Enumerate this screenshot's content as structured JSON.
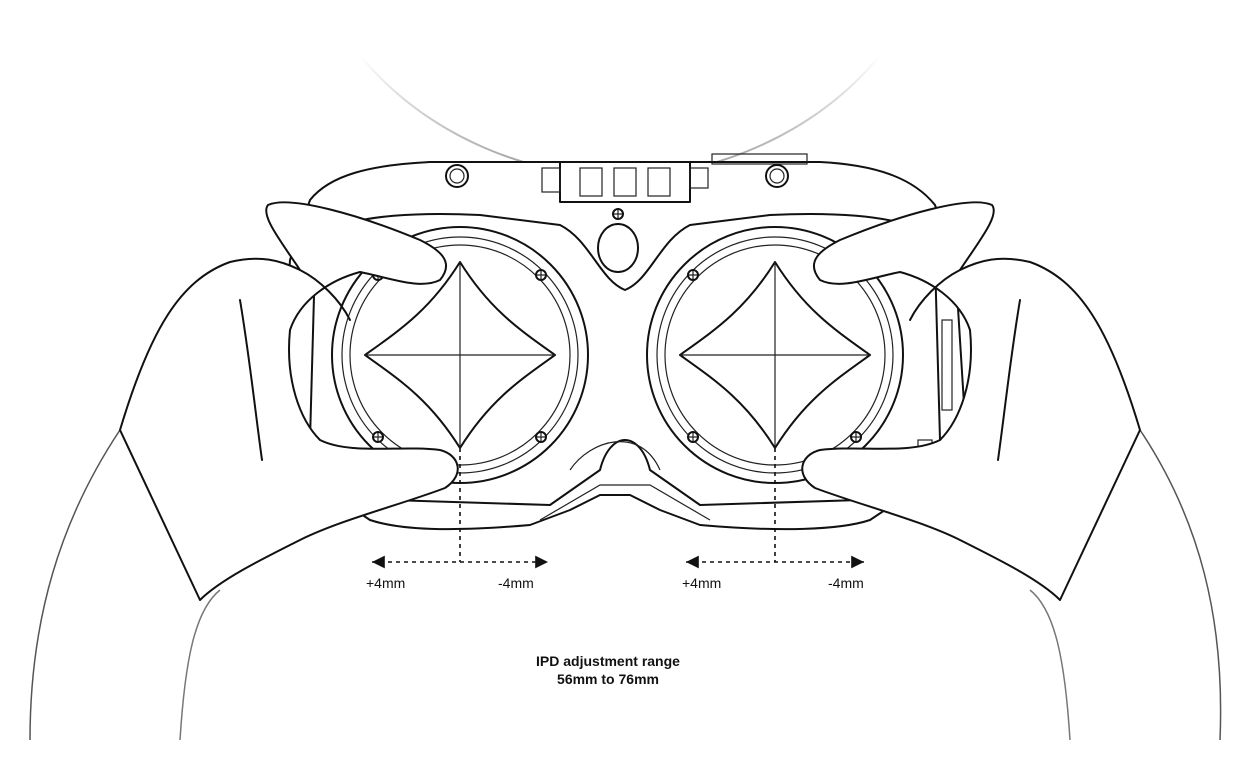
{
  "left_lens": {
    "plus_label": "+4mm",
    "minus_label": "-4mm"
  },
  "right_lens": {
    "plus_label": "+4mm",
    "minus_label": "-4mm"
  },
  "caption": {
    "line1": "IPD adjustment range",
    "line2": "56mm to 76mm"
  }
}
